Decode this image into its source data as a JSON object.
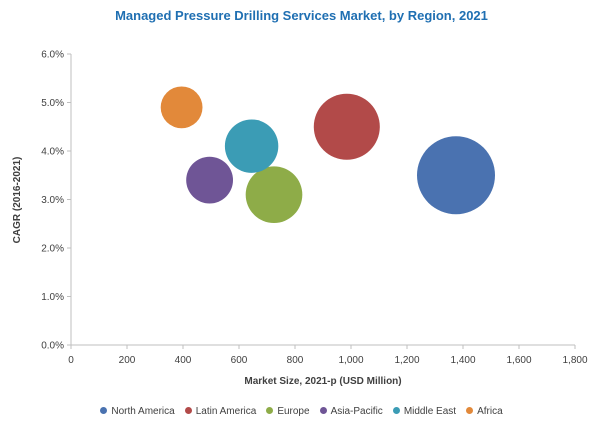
{
  "chart_data": {
    "type": "scatter",
    "title": "Managed Pressure Drilling Services Market, by Region, 2021",
    "xlabel": "Market Size, 2021-p (USD Million)",
    "ylabel": "CAGR (2016-2021)",
    "xlim": [
      0,
      1800
    ],
    "ylim": [
      0,
      6
    ],
    "x_ticks": [
      0,
      200,
      400,
      600,
      800,
      1000,
      1200,
      1400,
      1600,
      1800
    ],
    "x_tick_labels": [
      "0",
      "200",
      "400",
      "600",
      "800",
      "1,000",
      "1,200",
      "1,400",
      "1,600",
      "1,800"
    ],
    "y_ticks": [
      0,
      1,
      2,
      3,
      4,
      5,
      6
    ],
    "y_tick_labels": [
      "0.0%",
      "1.0%",
      "2.0%",
      "3.0%",
      "4.0%",
      "5.0%",
      "6.0%"
    ],
    "grid": false,
    "legend_position": "bottom",
    "series": [
      {
        "name": "North America",
        "x": 1375,
        "y": 3.5,
        "size": 1375,
        "color": "#4a72b0"
      },
      {
        "name": "Latin America",
        "x": 985,
        "y": 4.5,
        "size": 985,
        "color": "#b24a49"
      },
      {
        "name": "Europe",
        "x": 725,
        "y": 3.1,
        "size": 725,
        "color": "#8eac48"
      },
      {
        "name": "Asia-Pacific",
        "x": 495,
        "y": 3.4,
        "size": 495,
        "color": "#6f5596"
      },
      {
        "name": "Middle East",
        "x": 645,
        "y": 4.1,
        "size": 645,
        "color": "#3b9cb5"
      },
      {
        "name": "Africa",
        "x": 395,
        "y": 4.9,
        "size": 395,
        "color": "#e2893a"
      }
    ]
  }
}
